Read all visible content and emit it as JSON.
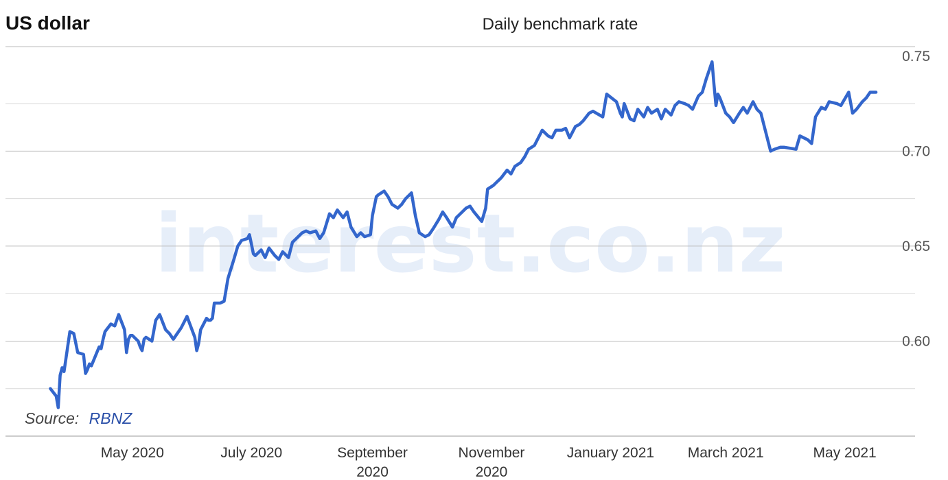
{
  "header": {
    "title": "US dollar",
    "subtitle": "Daily benchmark rate"
  },
  "source": {
    "prefix": "Source:",
    "link": "RBNZ"
  },
  "watermark": "interest.co.nz",
  "colors": {
    "line": "#3366cc",
    "grid": "#d9d9d9",
    "grid_major": "#bbbbbb",
    "axis": "#999999"
  },
  "chart_data": {
    "type": "line",
    "title": "Daily benchmark rate",
    "xlabel": "",
    "ylabel": "",
    "ylim": [
      0.55,
      0.755
    ],
    "yticks": [
      "0.60",
      "0.65",
      "0.70",
      "0.75"
    ],
    "xticks": [
      {
        "date": "2020-05-01",
        "label": [
          "May 2020"
        ]
      },
      {
        "date": "2020-07-01",
        "label": [
          "July 2020"
        ]
      },
      {
        "date": "2020-09-01",
        "label": [
          "September",
          "2020"
        ]
      },
      {
        "date": "2020-11-01",
        "label": [
          "November",
          "2020"
        ]
      },
      {
        "date": "2021-01-01",
        "label": [
          "January 2021"
        ]
      },
      {
        "date": "2021-03-01",
        "label": [
          "March 2021"
        ]
      },
      {
        "date": "2021-05-01",
        "label": [
          "May 2021"
        ]
      }
    ],
    "grid": true,
    "legend": "none",
    "series": [
      {
        "x": [
          "2020-03-20",
          "2020-03-23",
          "2020-03-24",
          "2020-03-25",
          "2020-03-26",
          "2020-03-27",
          "2020-03-30",
          "2020-04-01",
          "2020-04-03",
          "2020-04-06",
          "2020-04-07",
          "2020-04-08",
          "2020-04-09",
          "2020-04-10",
          "2020-04-14",
          "2020-04-15",
          "2020-04-16",
          "2020-04-17",
          "2020-04-20",
          "2020-04-22",
          "2020-04-24",
          "2020-04-27",
          "2020-04-28",
          "2020-04-29",
          "2020-04-30",
          "2020-05-01",
          "2020-05-04",
          "2020-05-05",
          "2020-05-06",
          "2020-05-07",
          "2020-05-08",
          "2020-05-11",
          "2020-05-13",
          "2020-05-15",
          "2020-05-18",
          "2020-05-19",
          "2020-05-20",
          "2020-05-22",
          "2020-05-26",
          "2020-05-28",
          "2020-05-29",
          "2020-06-02",
          "2020-06-03",
          "2020-06-04",
          "2020-06-05",
          "2020-06-08",
          "2020-06-09",
          "2020-06-10",
          "2020-06-11",
          "2020-06-12",
          "2020-06-15",
          "2020-06-17",
          "2020-06-19",
          "2020-06-22",
          "2020-06-24",
          "2020-06-26",
          "2020-06-29",
          "2020-06-30",
          "2020-07-01",
          "2020-07-02",
          "2020-07-03",
          "2020-07-06",
          "2020-07-08",
          "2020-07-10",
          "2020-07-13",
          "2020-07-15",
          "2020-07-17",
          "2020-07-20",
          "2020-07-22",
          "2020-07-24",
          "2020-07-27",
          "2020-07-29",
          "2020-07-31",
          "2020-08-03",
          "2020-08-05",
          "2020-08-07",
          "2020-08-10",
          "2020-08-12",
          "2020-08-14",
          "2020-08-17",
          "2020-08-19",
          "2020-08-21",
          "2020-08-24",
          "2020-08-26",
          "2020-08-28",
          "2020-08-31",
          "2020-09-01",
          "2020-09-03",
          "2020-09-04",
          "2020-09-07",
          "2020-09-09",
          "2020-09-11",
          "2020-09-14",
          "2020-09-16",
          "2020-09-18",
          "2020-09-21",
          "2020-09-23",
          "2020-09-25",
          "2020-09-28",
          "2020-09-30",
          "2020-10-02",
          "2020-10-05",
          "2020-10-07",
          "2020-10-09",
          "2020-10-12",
          "2020-10-14",
          "2020-10-16",
          "2020-10-19",
          "2020-10-21",
          "2020-10-23",
          "2020-10-27",
          "2020-10-29",
          "2020-10-30",
          "2020-11-02",
          "2020-11-04",
          "2020-11-05",
          "2020-11-06",
          "2020-11-09",
          "2020-11-11",
          "2020-11-13",
          "2020-11-16",
          "2020-11-18",
          "2020-11-20",
          "2020-11-23",
          "2020-11-25",
          "2020-11-27",
          "2020-11-30",
          "2020-12-02",
          "2020-12-04",
          "2020-12-07",
          "2020-12-09",
          "2020-12-11",
          "2020-12-14",
          "2020-12-16",
          "2020-12-18",
          "2020-12-21",
          "2020-12-23",
          "2020-12-28",
          "2020-12-30",
          "2021-01-04",
          "2021-01-06",
          "2021-01-07",
          "2021-01-08",
          "2021-01-11",
          "2021-01-13",
          "2021-01-15",
          "2021-01-18",
          "2021-01-20",
          "2021-01-22",
          "2021-01-25",
          "2021-01-27",
          "2021-01-29",
          "2021-02-01",
          "2021-02-03",
          "2021-02-05",
          "2021-02-08",
          "2021-02-10",
          "2021-02-12",
          "2021-02-15",
          "2021-02-17",
          "2021-02-19",
          "2021-02-22",
          "2021-02-23",
          "2021-02-24",
          "2021-02-25",
          "2021-02-26",
          "2021-03-01",
          "2021-03-03",
          "2021-03-05",
          "2021-03-08",
          "2021-03-10",
          "2021-03-12",
          "2021-03-15",
          "2021-03-17",
          "2021-03-19",
          "2021-03-22",
          "2021-03-24",
          "2021-03-26",
          "2021-03-29",
          "2021-03-31",
          "2021-04-06",
          "2021-04-08",
          "2021-04-12",
          "2021-04-14",
          "2021-04-16",
          "2021-04-19",
          "2021-04-21",
          "2021-04-23",
          "2021-04-27",
          "2021-04-29",
          "2021-05-03",
          "2021-05-05",
          "2021-05-07",
          "2021-05-10",
          "2021-05-12",
          "2021-05-14",
          "2021-05-17"
        ],
        "values": [
          0.575,
          0.571,
          0.565,
          0.582,
          0.586,
          0.584,
          0.605,
          0.604,
          0.594,
          0.593,
          0.583,
          0.585,
          0.588,
          0.587,
          0.597,
          0.596,
          0.601,
          0.605,
          0.609,
          0.608,
          0.614,
          0.606,
          0.594,
          0.601,
          0.603,
          0.603,
          0.6,
          0.597,
          0.595,
          0.601,
          0.602,
          0.6,
          0.611,
          0.614,
          0.606,
          0.605,
          0.604,
          0.601,
          0.607,
          0.611,
          0.613,
          0.602,
          0.595,
          0.599,
          0.606,
          0.612,
          0.611,
          0.611,
          0.612,
          0.62,
          0.62,
          0.621,
          0.633,
          0.643,
          0.65,
          0.653,
          0.654,
          0.656,
          0.651,
          0.646,
          0.645,
          0.648,
          0.644,
          0.649,
          0.645,
          0.643,
          0.647,
          0.644,
          0.652,
          0.654,
          0.657,
          0.658,
          0.657,
          0.658,
          0.654,
          0.657,
          0.667,
          0.665,
          0.669,
          0.665,
          0.668,
          0.66,
          0.655,
          0.657,
          0.655,
          0.656,
          0.666,
          0.676,
          0.677,
          0.679,
          0.676,
          0.672,
          0.67,
          0.672,
          0.675,
          0.678,
          0.666,
          0.657,
          0.655,
          0.656,
          0.659,
          0.664,
          0.668,
          0.665,
          0.66,
          0.665,
          0.667,
          0.67,
          0.671,
          0.668,
          0.663,
          0.67,
          0.68,
          0.682,
          0.684,
          0.685,
          0.686,
          0.69,
          0.688,
          0.692,
          0.694,
          0.697,
          0.701,
          0.703,
          0.707,
          0.711,
          0.708,
          0.707,
          0.711,
          0.711,
          0.712,
          0.707,
          0.713,
          0.714,
          0.716,
          0.72,
          0.721,
          0.718,
          0.73,
          0.726,
          0.72,
          0.718,
          0.725,
          0.717,
          0.716,
          0.722,
          0.718,
          0.723,
          0.72,
          0.722,
          0.717,
          0.722,
          0.719,
          0.724,
          0.726,
          0.725,
          0.724,
          0.722,
          0.729,
          0.731,
          0.738,
          0.747,
          0.735,
          0.724,
          0.73,
          0.728,
          0.72,
          0.718,
          0.715,
          0.72,
          0.723,
          0.72,
          0.726,
          0.722,
          0.72,
          0.708,
          0.7,
          0.701,
          0.702,
          0.702,
          0.701,
          0.708,
          0.706,
          0.704,
          0.718,
          0.723,
          0.722,
          0.726,
          0.725,
          0.724,
          0.731,
          0.72,
          0.722,
          0.726,
          0.728,
          0.731,
          0.731
        ]
      }
    ]
  }
}
